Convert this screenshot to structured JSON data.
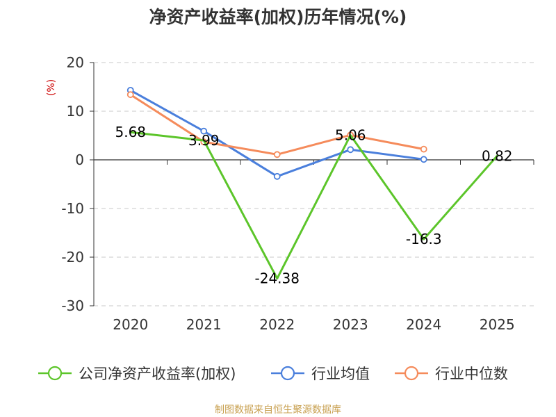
{
  "chart_data": {
    "type": "line",
    "title": "净资产收益率(加权)历年情况(%)",
    "unit_label": "(%)",
    "categories": [
      "2020",
      "2021",
      "2022",
      "2023",
      "2024",
      "2025"
    ],
    "ylim": [
      -30,
      20
    ],
    "yticks": [
      20,
      10,
      0,
      -10,
      -20,
      -30
    ],
    "grid": true,
    "legend_position": "bottom",
    "series": [
      {
        "name": "公司净资产收益率(加权)",
        "color": "#5cc52a",
        "values": [
          5.68,
          3.99,
          -24.38,
          5.06,
          -16.3,
          0.82
        ],
        "labels": [
          "5.68",
          "3.99",
          "-24.38",
          "5.06",
          "-16.3",
          "0.82"
        ],
        "markers": false
      },
      {
        "name": "行业均值",
        "color": "#4a7fdc",
        "values": [
          14.3,
          5.9,
          -3.4,
          2.1,
          0.1,
          null
        ],
        "markers": true
      },
      {
        "name": "行业中位数",
        "color": "#f58b5b",
        "values": [
          13.4,
          3.7,
          1.1,
          5.1,
          2.2,
          null
        ],
        "markers": true
      }
    ],
    "source": "制图数据来自恒生聚源数据库"
  }
}
